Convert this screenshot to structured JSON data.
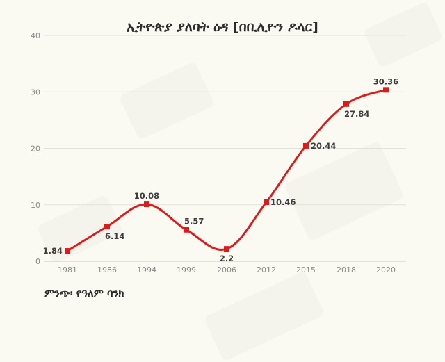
{
  "title": "ኢትዮጵያ ያለባት ዕዳ [በቢሊዮን ዶላር]",
  "source": "ምንጭ፡ የዓለም ባንክ",
  "colors": {
    "line": "#e0191b",
    "marker": "#e0191b",
    "grid": "#e2e2da",
    "background": "#fafaf3"
  },
  "chart_data": {
    "type": "line",
    "title": "ኢትዮጵያ ያለባት ዕዳ [በቢሊዮን ዶላር]",
    "xlabel": "",
    "ylabel": "",
    "categories": [
      "1981",
      "1986",
      "1994",
      "1999",
      "2006",
      "2012",
      "2015",
      "2018",
      "2020"
    ],
    "series": [
      {
        "name": "Debt (billion USD)",
        "values": [
          1.84,
          6.14,
          10.08,
          5.57,
          2.2,
          10.46,
          20.44,
          27.84,
          30.36
        ]
      }
    ],
    "data_labels": [
      "1.84",
      "6.14",
      "10.08",
      "5.57",
      "2.2",
      "10.46",
      "20.44",
      "27.84",
      "30.36"
    ],
    "ylim": [
      0,
      40
    ],
    "yticks": [
      0,
      10,
      20,
      30,
      40
    ],
    "grid": true,
    "legend": "none",
    "annotation": "ምንጭ፡ የዓለም ባንክ"
  }
}
